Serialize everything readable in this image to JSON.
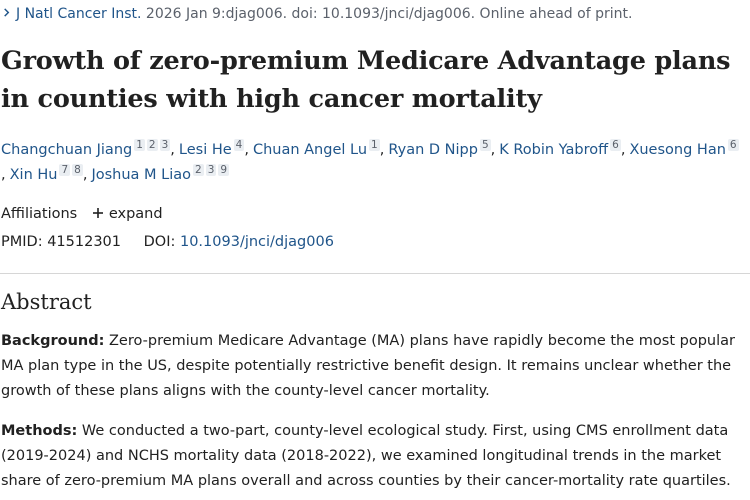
{
  "citation": {
    "journal": "J Natl Cancer Inst.",
    "details": "2026 Jan 9:djag006. doi: 10.1093/jnci/djag006. Online ahead of print."
  },
  "title": "Growth of zero-premium Medicare Advantage plans in counties with high cancer mortality",
  "authors": [
    {
      "name": "Changchuan Jiang",
      "sups": [
        "1",
        "2",
        "3"
      ]
    },
    {
      "name": "Lesi He",
      "sups": [
        "4"
      ]
    },
    {
      "name": "Chuan Angel Lu",
      "sups": [
        "1"
      ]
    },
    {
      "name": "Ryan D Nipp",
      "sups": [
        "5"
      ]
    },
    {
      "name": "K Robin Yabroff",
      "sups": [
        "6"
      ]
    },
    {
      "name": "Xuesong Han",
      "sups": [
        "6"
      ]
    },
    {
      "name": "Xin Hu",
      "sups": [
        "7",
        "8"
      ]
    },
    {
      "name": "Joshua M Liao",
      "sups": [
        "2",
        "3",
        "9"
      ]
    }
  ],
  "affiliations": {
    "label": "Affiliations",
    "expand_label": "expand"
  },
  "ids": {
    "pmid_label": "PMID:",
    "pmid": "41512301",
    "doi_label": "DOI:",
    "doi": "10.1093/jnci/djag006"
  },
  "abstract": {
    "heading": "Abstract",
    "background_label": "Background:",
    "background_text": "Zero-premium Medicare Advantage (MA) plans have rapidly become the most popular MA plan type in the US, despite potentially restrictive benefit design. It remains unclear whether the growth of these plans aligns with the county-level cancer mortality.",
    "methods_label": "Methods:",
    "methods_text": "We conducted a two-part, county-level ecological study. First, using CMS enrollment data (2019-2024) and NCHS mortality data (2018-2022), we examined longitudinal trends in the market share of zero-premium MA plans overall and across counties by their cancer-mortality rate quartiles."
  },
  "colors": {
    "link": "#20558a",
    "text": "#212121",
    "muted": "#5b616b"
  },
  "icons": {
    "journal_chevron": "chevron-right-icon",
    "expand": "plus-icon"
  }
}
